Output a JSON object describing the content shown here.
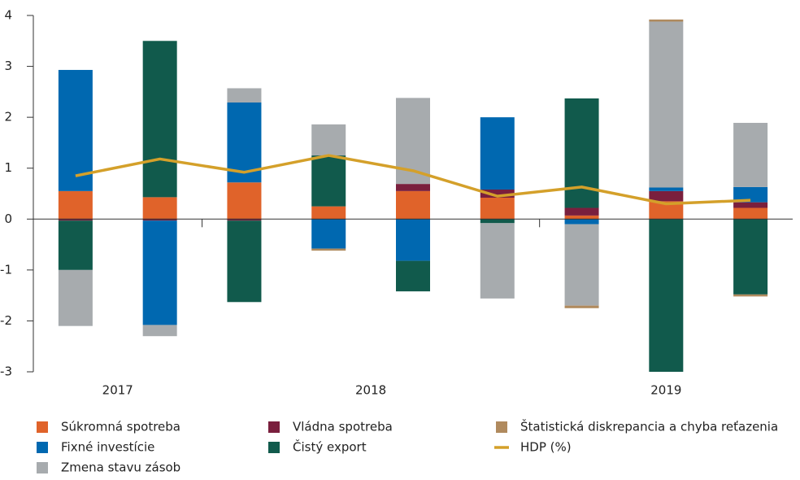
{
  "chart_data": {
    "type": "stacked_bar_line",
    "groups": [
      {
        "label": "2017",
        "size": 2
      },
      {
        "label": "2018",
        "size": 4
      },
      {
        "label": "2019",
        "size": 3
      }
    ],
    "series": [
      {
        "name": "Súkromná spotreba",
        "color": "#e0632a",
        "values": [
          0.55,
          0.43,
          0.72,
          0.25,
          0.55,
          0.42,
          0.07,
          0.35,
          0.22
        ]
      },
      {
        "name": "Vládna spotreba",
        "color": "#7a1f3d",
        "values": [
          -0.03,
          -0.03,
          -0.03,
          0,
          0.14,
          0.16,
          0.15,
          0.2,
          0.11
        ]
      },
      {
        "name": "Fixné investície",
        "color": "#0068b0",
        "values": [
          2.38,
          -2.05,
          1.57,
          -0.58,
          -0.82,
          1.42,
          -0.1,
          0.07,
          0.3
        ]
      },
      {
        "name": "Čistý export",
        "color": "#115a4c",
        "values": [
          -0.97,
          3.07,
          -1.6,
          1.0,
          -0.6,
          -0.08,
          2.15,
          -3.0,
          -1.48
        ]
      },
      {
        "name": "Zmena stavu zásob",
        "color": "#a7abae",
        "values": [
          -1.1,
          -0.22,
          0.28,
          0.61,
          1.69,
          -1.48,
          -1.6,
          3.26,
          1.26
        ]
      },
      {
        "name": "Štatistická diskrepancia a chyba reťazenia",
        "color": "#b08a5e",
        "values": [
          0,
          0,
          0,
          -0.04,
          0,
          0,
          -0.05,
          0.04,
          -0.04
        ]
      }
    ],
    "line": {
      "name": "HDP (%)",
      "color": "#d4a02a",
      "values": [
        0.85,
        1.18,
        0.92,
        1.25,
        0.95,
        0.45,
        0.63,
        0.3,
        0.37
      ]
    },
    "ylim": [
      -3,
      4
    ],
    "yticks": [
      -3,
      -2,
      -1,
      0,
      1,
      2,
      3,
      4
    ]
  }
}
